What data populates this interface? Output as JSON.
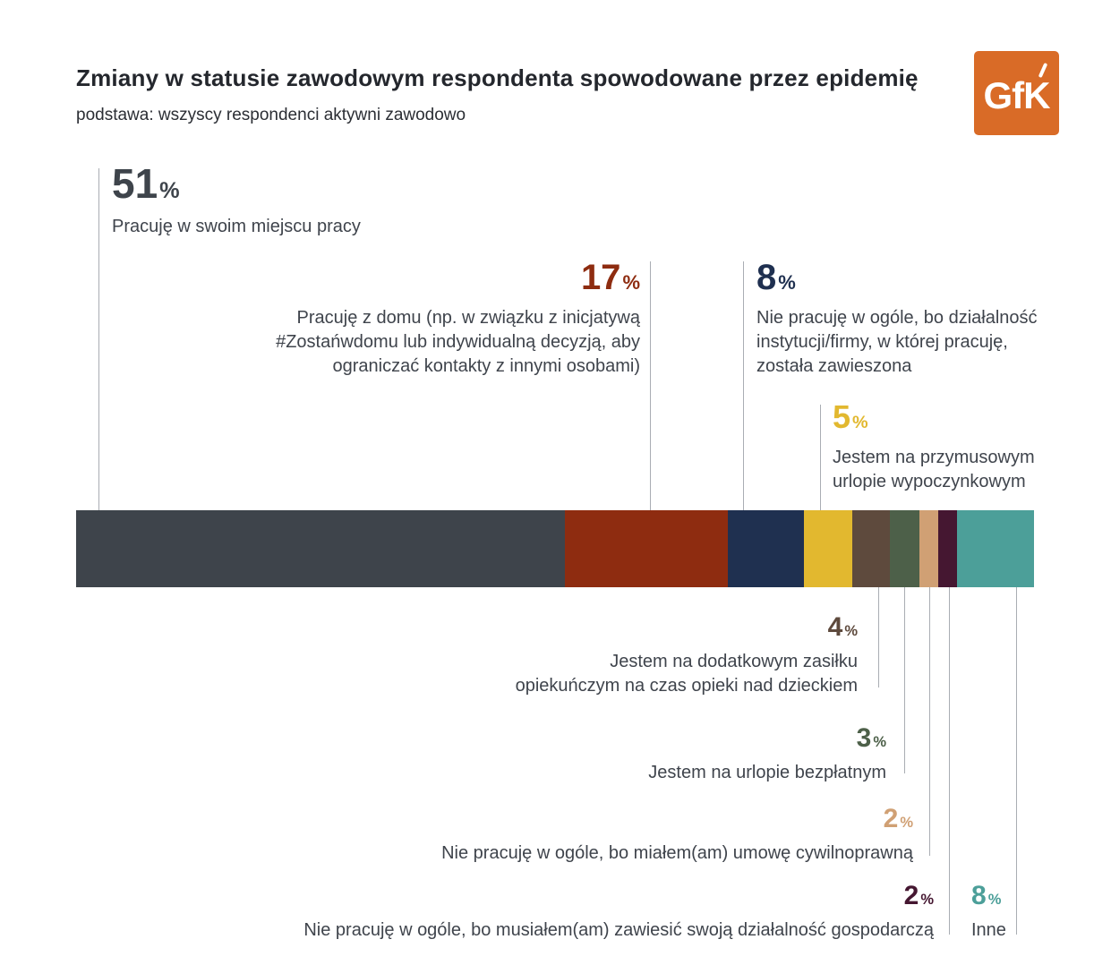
{
  "logo": {
    "text": "GfK",
    "background": "#d96b27",
    "text_color": "#ffffff"
  },
  "chart_data": {
    "type": "bar",
    "variant": "horizontal-stacked-100",
    "title": "Zmiany w statusie zawodowym respondenta spowodowane przez epidemię",
    "subtitle": "podstawa: wszyscy respondenci aktywni zawodowo",
    "unit": "%",
    "xlim": [
      0,
      100
    ],
    "grid": false,
    "legend": false,
    "segments": [
      {
        "slug": "work-at-workplace",
        "pct": "51",
        "value": 51,
        "color": "#3e444b",
        "label": "Pracuję w swoim miejscu pracy"
      },
      {
        "slug": "work-from-home",
        "pct": "17",
        "value": 17,
        "color": "#8e2c10",
        "label": "Pracuję z domu (np. w związku z inicjatywą #Zostańwdomu lub indywidualną decyzją, aby ograniczać kontakty z innymi osobami)"
      },
      {
        "slug": "company-suspended",
        "pct": "8",
        "value": 8,
        "color": "#1f3050",
        "label": "Nie pracuję w ogóle, bo działalność instytucji/firmy, w której pracuję, została zawieszona"
      },
      {
        "slug": "forced-holiday-leave",
        "pct": "5",
        "value": 5,
        "color": "#e2b82f",
        "label": "Jestem na przymusowym urlopie wypoczynkowym"
      },
      {
        "slug": "childcare-benefit",
        "pct": "4",
        "value": 4,
        "color": "#5e4a3d",
        "label": "Jestem na dodatkowym zasiłku opiekuńczym na czas opieki nad dzieckiem"
      },
      {
        "slug": "unpaid-leave",
        "pct": "3",
        "value": 3,
        "color": "#4d6049",
        "label": "Jestem na urlopie bezpłatnym"
      },
      {
        "slug": "civil-contract",
        "pct": "2",
        "value": 2,
        "color": "#d0a074",
        "label": "Nie pracuję w ogóle, bo miałem(am) umowę cywilnoprawną"
      },
      {
        "slug": "suspended-own-business",
        "pct": "2",
        "value": 2,
        "color": "#451731",
        "label": "Nie pracuję w ogóle, bo musiałem(am) zawiesić swoją działalność gospodarczą"
      },
      {
        "slug": "other",
        "pct": "8",
        "value": 8,
        "color": "#4c9f99",
        "label": "Inne"
      }
    ]
  }
}
